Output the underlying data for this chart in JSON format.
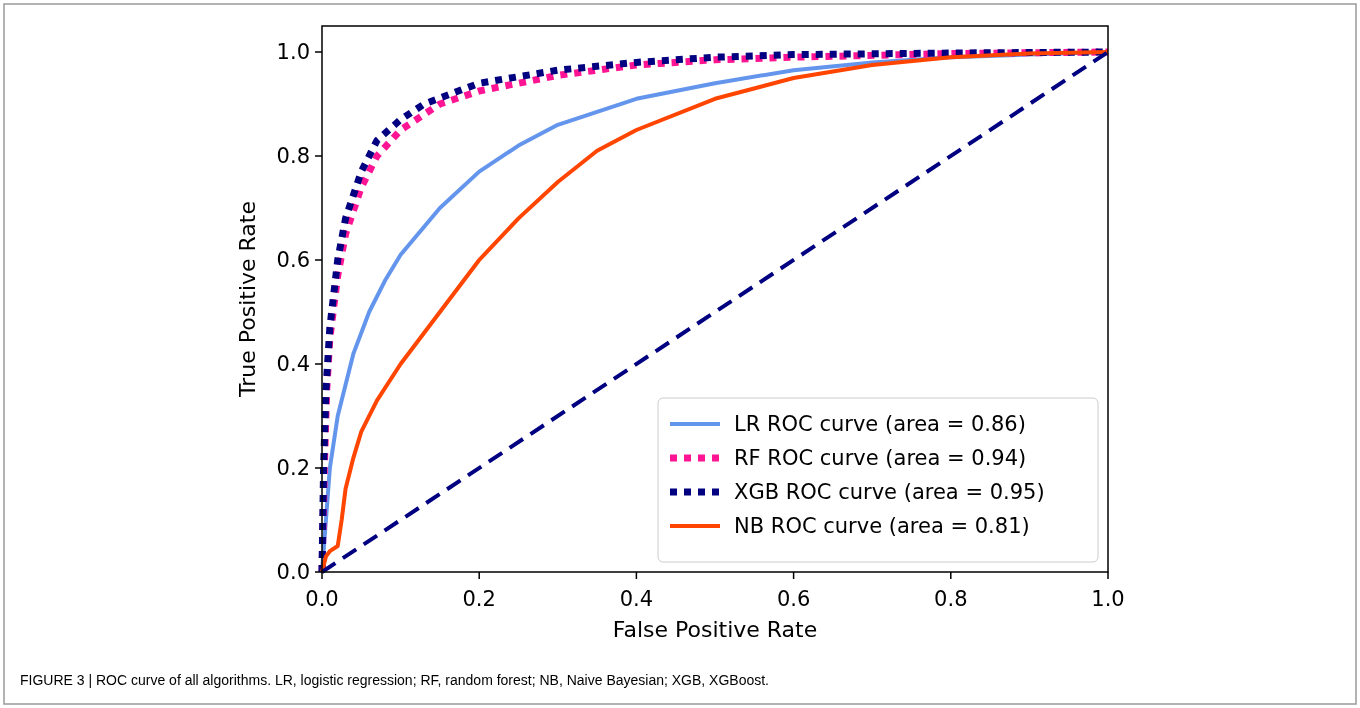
{
  "chart_data": {
    "type": "line",
    "xlabel": "False Positive Rate",
    "ylabel": "True Positive Rate",
    "xlim": [
      0,
      1
    ],
    "ylim": [
      0,
      1.05
    ],
    "xticks": [
      {
        "value": 0,
        "label": "0.0"
      },
      0.2,
      0.4,
      0.6,
      0.8,
      {
        "value": 1,
        "label": "1.0"
      }
    ],
    "yticks": [
      {
        "value": 0,
        "label": "0.0"
      },
      0.2,
      0.4,
      0.6,
      0.8,
      {
        "value": 1,
        "label": "1.0"
      }
    ],
    "grid": false,
    "legend": "bottom right",
    "annotations": [
      "FIGURE 3 | ROC curve of all algorithms. LR, logistic regression; RF, random forest; NB, Naive Bayesian; XGB, XGBoost."
    ],
    "series": [
      {
        "name": "LR ROC curve (area = 0.86)",
        "color": "#6495ed",
        "line_style": "solid",
        "x": [
          0,
          0.005,
          0.01,
          0.02,
          0.04,
          0.06,
          0.08,
          0.1,
          0.15,
          0.2,
          0.25,
          0.3,
          0.4,
          0.5,
          0.6,
          0.7,
          0.8,
          0.9,
          1
        ],
        "values": [
          0,
          0.1,
          0.2,
          0.3,
          0.42,
          0.5,
          0.56,
          0.61,
          0.7,
          0.77,
          0.82,
          0.86,
          0.91,
          0.94,
          0.965,
          0.98,
          0.99,
          0.995,
          1
        ]
      },
      {
        "name": "RF ROC curve (area = 0.94)",
        "color": "#ff1493",
        "line_style": "dotted",
        "x": [
          0,
          0.003,
          0.006,
          0.01,
          0.02,
          0.03,
          0.05,
          0.07,
          0.1,
          0.15,
          0.2,
          0.3,
          0.4,
          0.5,
          0.6,
          0.8,
          1
        ],
        "values": [
          0,
          0.2,
          0.35,
          0.45,
          0.57,
          0.65,
          0.74,
          0.8,
          0.85,
          0.9,
          0.925,
          0.955,
          0.975,
          0.985,
          0.99,
          0.997,
          1
        ]
      },
      {
        "name": "XGB ROC curve (area = 0.95)",
        "color": "#000080",
        "line_style": "dotted",
        "x": [
          0,
          0.002,
          0.005,
          0.01,
          0.02,
          0.03,
          0.05,
          0.07,
          0.1,
          0.13,
          0.2,
          0.3,
          0.4,
          0.5,
          0.6,
          0.8,
          1
        ],
        "values": [
          0,
          0.2,
          0.35,
          0.47,
          0.6,
          0.68,
          0.77,
          0.83,
          0.87,
          0.9,
          0.94,
          0.965,
          0.98,
          0.99,
          0.995,
          0.998,
          1
        ]
      },
      {
        "name": "NB ROC curve (area = 0.81)",
        "color": "#ff4500",
        "line_style": "solid",
        "x": [
          0,
          0.005,
          0.01,
          0.02,
          0.025,
          0.03,
          0.04,
          0.05,
          0.07,
          0.1,
          0.15,
          0.2,
          0.25,
          0.3,
          0.35,
          0.4,
          0.5,
          0.6,
          0.7,
          0.8,
          0.9,
          1
        ],
        "values": [
          0,
          0.03,
          0.04,
          0.05,
          0.1,
          0.16,
          0.22,
          0.27,
          0.33,
          0.4,
          0.5,
          0.6,
          0.68,
          0.75,
          0.81,
          0.85,
          0.91,
          0.95,
          0.975,
          0.99,
          0.997,
          1
        ]
      },
      {
        "color": "#000080",
        "line_style": "dashed",
        "x": [
          0,
          1
        ],
        "values": [
          0,
          1
        ]
      }
    ]
  }
}
